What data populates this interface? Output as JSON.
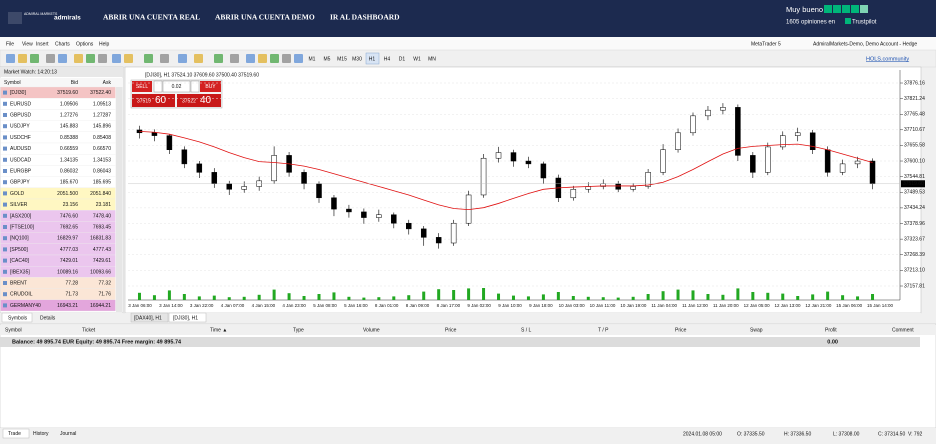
{
  "banner": {
    "logo_top": "ADMIRAL MARKETS",
    "logo": "admirals",
    "links": [
      "ABRIR UNA CUENTA REAL",
      "ABRIR UNA CUENTA DEMO",
      "IR AL DASHBOARD"
    ],
    "rating": "Muy bueno",
    "reviews": "1605 opiniones en",
    "trustpilot": "Trustpilot"
  },
  "menu": [
    "File",
    "View",
    "Insert",
    "Charts",
    "Options",
    "Help"
  ],
  "title_right": [
    "MetaTrader 5",
    "AdmiralMarkets-Demo, Demo Account - Hedge"
  ],
  "timeframes": [
    "M1",
    "M5",
    "M15",
    "M30",
    "H1",
    "H4",
    "D1",
    "W1",
    "MN"
  ],
  "community": "HOLS.community",
  "market_watch": {
    "title": "Market Watch: 14:20:13",
    "columns": [
      "Symbol",
      "Bid",
      "Ask"
    ],
    "rows": [
      {
        "symbol": "[DJI30]",
        "bid": "37519.60",
        "ask": "37522.40",
        "color": "#f4c4c4"
      },
      {
        "symbol": "EURUSD",
        "bid": "1.09506",
        "ask": "1.09513",
        "color": "#ffffff"
      },
      {
        "symbol": "GBPUSD",
        "bid": "1.27276",
        "ask": "1.27287",
        "color": "#ffffff"
      },
      {
        "symbol": "USDJPY",
        "bid": "145.883",
        "ask": "145.896",
        "color": "#ffffff"
      },
      {
        "symbol": "USDCHF",
        "bid": "0.85388",
        "ask": "0.85408",
        "color": "#ffffff"
      },
      {
        "symbol": "AUDUSD",
        "bid": "0.66559",
        "ask": "0.66570",
        "color": "#ffffff"
      },
      {
        "symbol": "USDCAD",
        "bid": "1.34135",
        "ask": "1.34153",
        "color": "#ffffff"
      },
      {
        "symbol": "EURGBP",
        "bid": "0.86032",
        "ask": "0.86043",
        "color": "#ffffff"
      },
      {
        "symbol": "GBPJPY",
        "bid": "185.670",
        "ask": "185.695",
        "color": "#ffffff"
      },
      {
        "symbol": "GOLD",
        "bid": "2051.500",
        "ask": "2051.840",
        "color": "#fff7c2"
      },
      {
        "symbol": "SILVER",
        "bid": "23.156",
        "ask": "23.181",
        "color": "#fff7c2"
      },
      {
        "symbol": "[ASX200]",
        "bid": "7476.60",
        "ask": "7478.40",
        "color": "#ebc6ee"
      },
      {
        "symbol": "[FTSE100]",
        "bid": "7692.65",
        "ask": "7693.45",
        "color": "#ebc6ee"
      },
      {
        "symbol": "[NQ100]",
        "bid": "16829.97",
        "ask": "16831.83",
        "color": "#ebc6ee"
      },
      {
        "symbol": "[SP500]",
        "bid": "4777.03",
        "ask": "4777.43",
        "color": "#ebc6ee"
      },
      {
        "symbol": "[CAC40]",
        "bid": "7429.01",
        "ask": "7429.61",
        "color": "#ebc6ee"
      },
      {
        "symbol": "[IBEX35]",
        "bid": "10089.16",
        "ask": "10093.66",
        "color": "#ebc6ee"
      },
      {
        "symbol": "BRENT",
        "bid": "77.28",
        "ask": "77.32",
        "color": "#fbe6d6"
      },
      {
        "symbol": "CRUDOIL",
        "bid": "71.73",
        "ask": "71.76",
        "color": "#fbe6d6"
      },
      {
        "symbol": "GERMANY40",
        "bid": "16943.21",
        "ask": "16944.21",
        "color": "#e3a6dc"
      }
    ],
    "tabs": [
      "Symbols",
      "Details"
    ]
  },
  "chart_tabs": [
    "[DAX40], H1",
    "[DJI30], H1"
  ],
  "trade_panel": {
    "sell": "SELL",
    "buy": "BUY",
    "lot": "0.02",
    "sell_big": "37519",
    "sell_small": "60",
    "buy_big": "37522",
    "buy_small": "40"
  },
  "chart_data": {
    "type": "candlestick",
    "title": "[DJI30], H1  37524.10 37609.60 37500.40 37519.60",
    "ylim": [
      37108.3,
      37922.2
    ],
    "yticks": [
      37876.16,
      37821.24,
      37765.48,
      37710.67,
      37655.58,
      {
        "value": 37600.1,
        "label": "37600.10"
      },
      37544.81,
      37489.53,
      37434.24,
      37378.96,
      37323.67,
      37268.39,
      {
        "value": 37213.1,
        "label": "37213.10"
      },
      37157.81
    ],
    "current_price": {
      "value": 37519.6,
      "label": "37519.60"
    },
    "time_labels": [
      "3 Jan 06:00",
      "3 Jan 14:00",
      "3 Jan 22:00",
      "4 Jan 07:00",
      "4 Jan 15:00",
      "4 Jan 23:00",
      "5 Jan 08:00",
      "5 Jan 16:00",
      "8 Jan 01:00",
      "8 Jan 09:00",
      "8 Jan 17:00",
      "9 Jan 02:00",
      "9 Jan 10:00",
      "9 Jan 18:00",
      "10 Jan 03:00",
      "10 Jan 11:00",
      "10 Jan 19:00",
      "11 Jan 04:00",
      "11 Jan 12:00",
      "11 Jan 20:00",
      "12 Jan 05:00",
      "12 Jan 13:00",
      "12 Jan 21:00",
      "15 Jan 06:00",
      "15 Jan 14:00"
    ],
    "up_color": "#ffffff",
    "down_color": "#000000",
    "ma_color": "#e01010",
    "volume_color": "#22a822",
    "grid": true,
    "ohlc": [
      [
        37710,
        37725,
        37680,
        37700
      ],
      [
        37700,
        37712,
        37670,
        37690
      ],
      [
        37690,
        37695,
        37625,
        37640
      ],
      [
        37640,
        37652,
        37575,
        37590
      ],
      [
        37590,
        37600,
        37540,
        37560
      ],
      [
        37560,
        37575,
        37505,
        37520
      ],
      [
        37520,
        37530,
        37480,
        37500
      ],
      [
        37500,
        37528,
        37488,
        37510
      ],
      [
        37510,
        37545,
        37495,
        37530
      ],
      [
        37530,
        37652,
        37520,
        37620
      ],
      [
        37620,
        37632,
        37545,
        37560
      ],
      [
        37560,
        37570,
        37500,
        37520
      ],
      [
        37520,
        37528,
        37452,
        37470
      ],
      [
        37470,
        37480,
        37405,
        37430
      ],
      [
        37430,
        37445,
        37400,
        37420
      ],
      [
        37420,
        37432,
        37378,
        37400
      ],
      [
        37400,
        37428,
        37385,
        37410
      ],
      [
        37410,
        37418,
        37362,
        37380
      ],
      [
        37380,
        37392,
        37340,
        37360
      ],
      [
        37360,
        37370,
        37300,
        37330
      ],
      [
        37330,
        37345,
        37290,
        37310
      ],
      [
        37310,
        37392,
        37300,
        37380
      ],
      [
        37380,
        37495,
        37370,
        37480
      ],
      [
        37480,
        37625,
        37470,
        37610
      ],
      [
        37610,
        37650,
        37595,
        37630
      ],
      [
        37630,
        37640,
        37580,
        37600
      ],
      [
        37600,
        37615,
        37575,
        37590
      ],
      [
        37590,
        37598,
        37520,
        37540
      ],
      [
        37540,
        37552,
        37455,
        37470
      ],
      [
        37470,
        37512,
        37460,
        37500
      ],
      [
        37500,
        37525,
        37488,
        37510
      ],
      [
        37510,
        37535,
        37500,
        37520
      ],
      [
        37520,
        37530,
        37490,
        37500
      ],
      [
        37500,
        37522,
        37492,
        37510
      ],
      [
        37510,
        37572,
        37502,
        37560
      ],
      [
        37560,
        37660,
        37550,
        37640
      ],
      [
        37640,
        37715,
        37630,
        37700
      ],
      [
        37700,
        37772,
        37690,
        37760
      ],
      [
        37760,
        37795,
        37745,
        37780
      ],
      [
        37780,
        37805,
        37765,
        37790
      ],
      [
        37790,
        37800,
        37600,
        37620
      ],
      [
        37620,
        37632,
        37540,
        37560
      ],
      [
        37560,
        37665,
        37550,
        37650
      ],
      [
        37650,
        37705,
        37640,
        37690
      ],
      [
        37690,
        37718,
        37670,
        37700
      ],
      [
        37700,
        37710,
        37625,
        37640
      ],
      [
        37640,
        37652,
        37545,
        37560
      ],
      [
        37560,
        37605,
        37550,
        37590
      ],
      [
        37590,
        37615,
        37575,
        37600
      ],
      [
        37600,
        37609.6,
        37500.4,
        37519.6
      ]
    ],
    "ma": [
      37705,
      37702,
      37695,
      37682,
      37668,
      37650,
      37630,
      37612,
      37598,
      37595,
      37590,
      37582,
      37570,
      37555,
      37540,
      37525,
      37510,
      37495,
      37480,
      37462,
      37445,
      37432,
      37428,
      37435,
      37450,
      37468,
      37485,
      37500,
      37505,
      37508,
      37510,
      37512,
      37512,
      37512,
      37515,
      37525,
      37545,
      37570,
      37598,
      37625,
      37645,
      37652,
      37655,
      37658,
      37660,
      37652,
      37640,
      37625,
      37610,
      37595
    ],
    "volumes": [
      1800,
      1200,
      2400,
      1500,
      900,
      1100,
      700,
      800,
      1300,
      2600,
      1700,
      1000,
      1500,
      1900,
      800,
      600,
      700,
      900,
      1200,
      2100,
      2700,
      2500,
      2900,
      3000,
      1600,
      1100,
      900,
      1400,
      2000,
      1000,
      800,
      700,
      600,
      800,
      1500,
      2200,
      2600,
      2400,
      1500,
      1300,
      2900,
      2000,
      1800,
      1600,
      1000,
      1400,
      2100,
      1200,
      900,
      1500
    ]
  },
  "terminal": {
    "columns": [
      "Symbol",
      "Ticket",
      "Time ▲",
      "Type",
      "Volume",
      "Price",
      "S / L",
      "T / P",
      "Price",
      "Swap",
      "Profit",
      "Comment"
    ],
    "balance": "Balance: 49 895.74 EUR  Equity: 49 895.74  Free margin: 49 895.74",
    "profit": "0.00",
    "tabs": [
      "Trade",
      "History",
      "Journal"
    ]
  },
  "status": [
    "2024.01.08 05:00",
    "O: 37335.50",
    "H: 37336.50",
    "L: 37308.00",
    "C: 37314.50",
    "V: 792"
  ]
}
